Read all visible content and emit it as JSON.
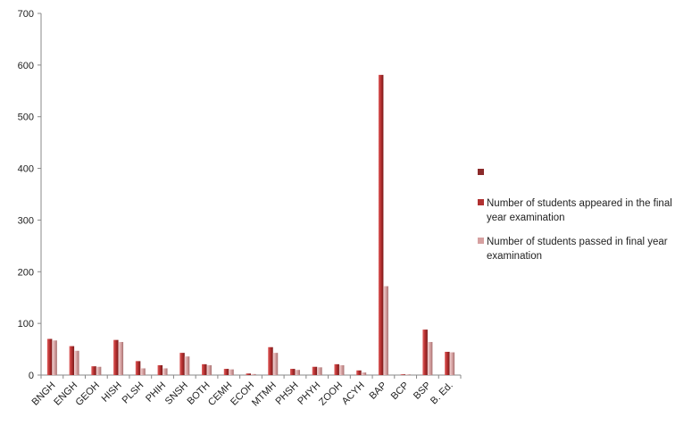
{
  "chart_data": {
    "type": "bar",
    "title": "",
    "xlabel": "",
    "ylabel": "",
    "ylim": [
      0,
      700
    ],
    "yticks": [
      0,
      100,
      200,
      300,
      400,
      500,
      600,
      700
    ],
    "grid": false,
    "legend_position": "right",
    "categories": [
      "BNGH",
      "ENGH",
      "GEOH",
      "HISH",
      "PLSH",
      "PHIH",
      "SNSH",
      "BOTH",
      "CEMH",
      "ECOH",
      "MTMH",
      "PHSH",
      "PHYH",
      "ZOOH",
      "ACYH",
      "BAP",
      "BCP",
      "BSP",
      "B. Ed."
    ],
    "series": [
      {
        "name": "Number of students appeared in the final year examination",
        "color": "#b03030",
        "values": [
          70,
          56,
          17,
          68,
          27,
          19,
          43,
          21,
          12,
          3,
          54,
          12,
          16,
          21,
          9,
          581,
          1,
          88,
          45
        ]
      },
      {
        "name": "Number of students passed in final year examination",
        "color": "#d6a0a0",
        "values": [
          67,
          47,
          16,
          64,
          13,
          13,
          36,
          19,
          11,
          2,
          43,
          10,
          15,
          19,
          5,
          172,
          1,
          64,
          44
        ]
      }
    ],
    "legend": {
      "empty_entry": {
        "name": "",
        "color": "#8b2a2a"
      }
    }
  }
}
